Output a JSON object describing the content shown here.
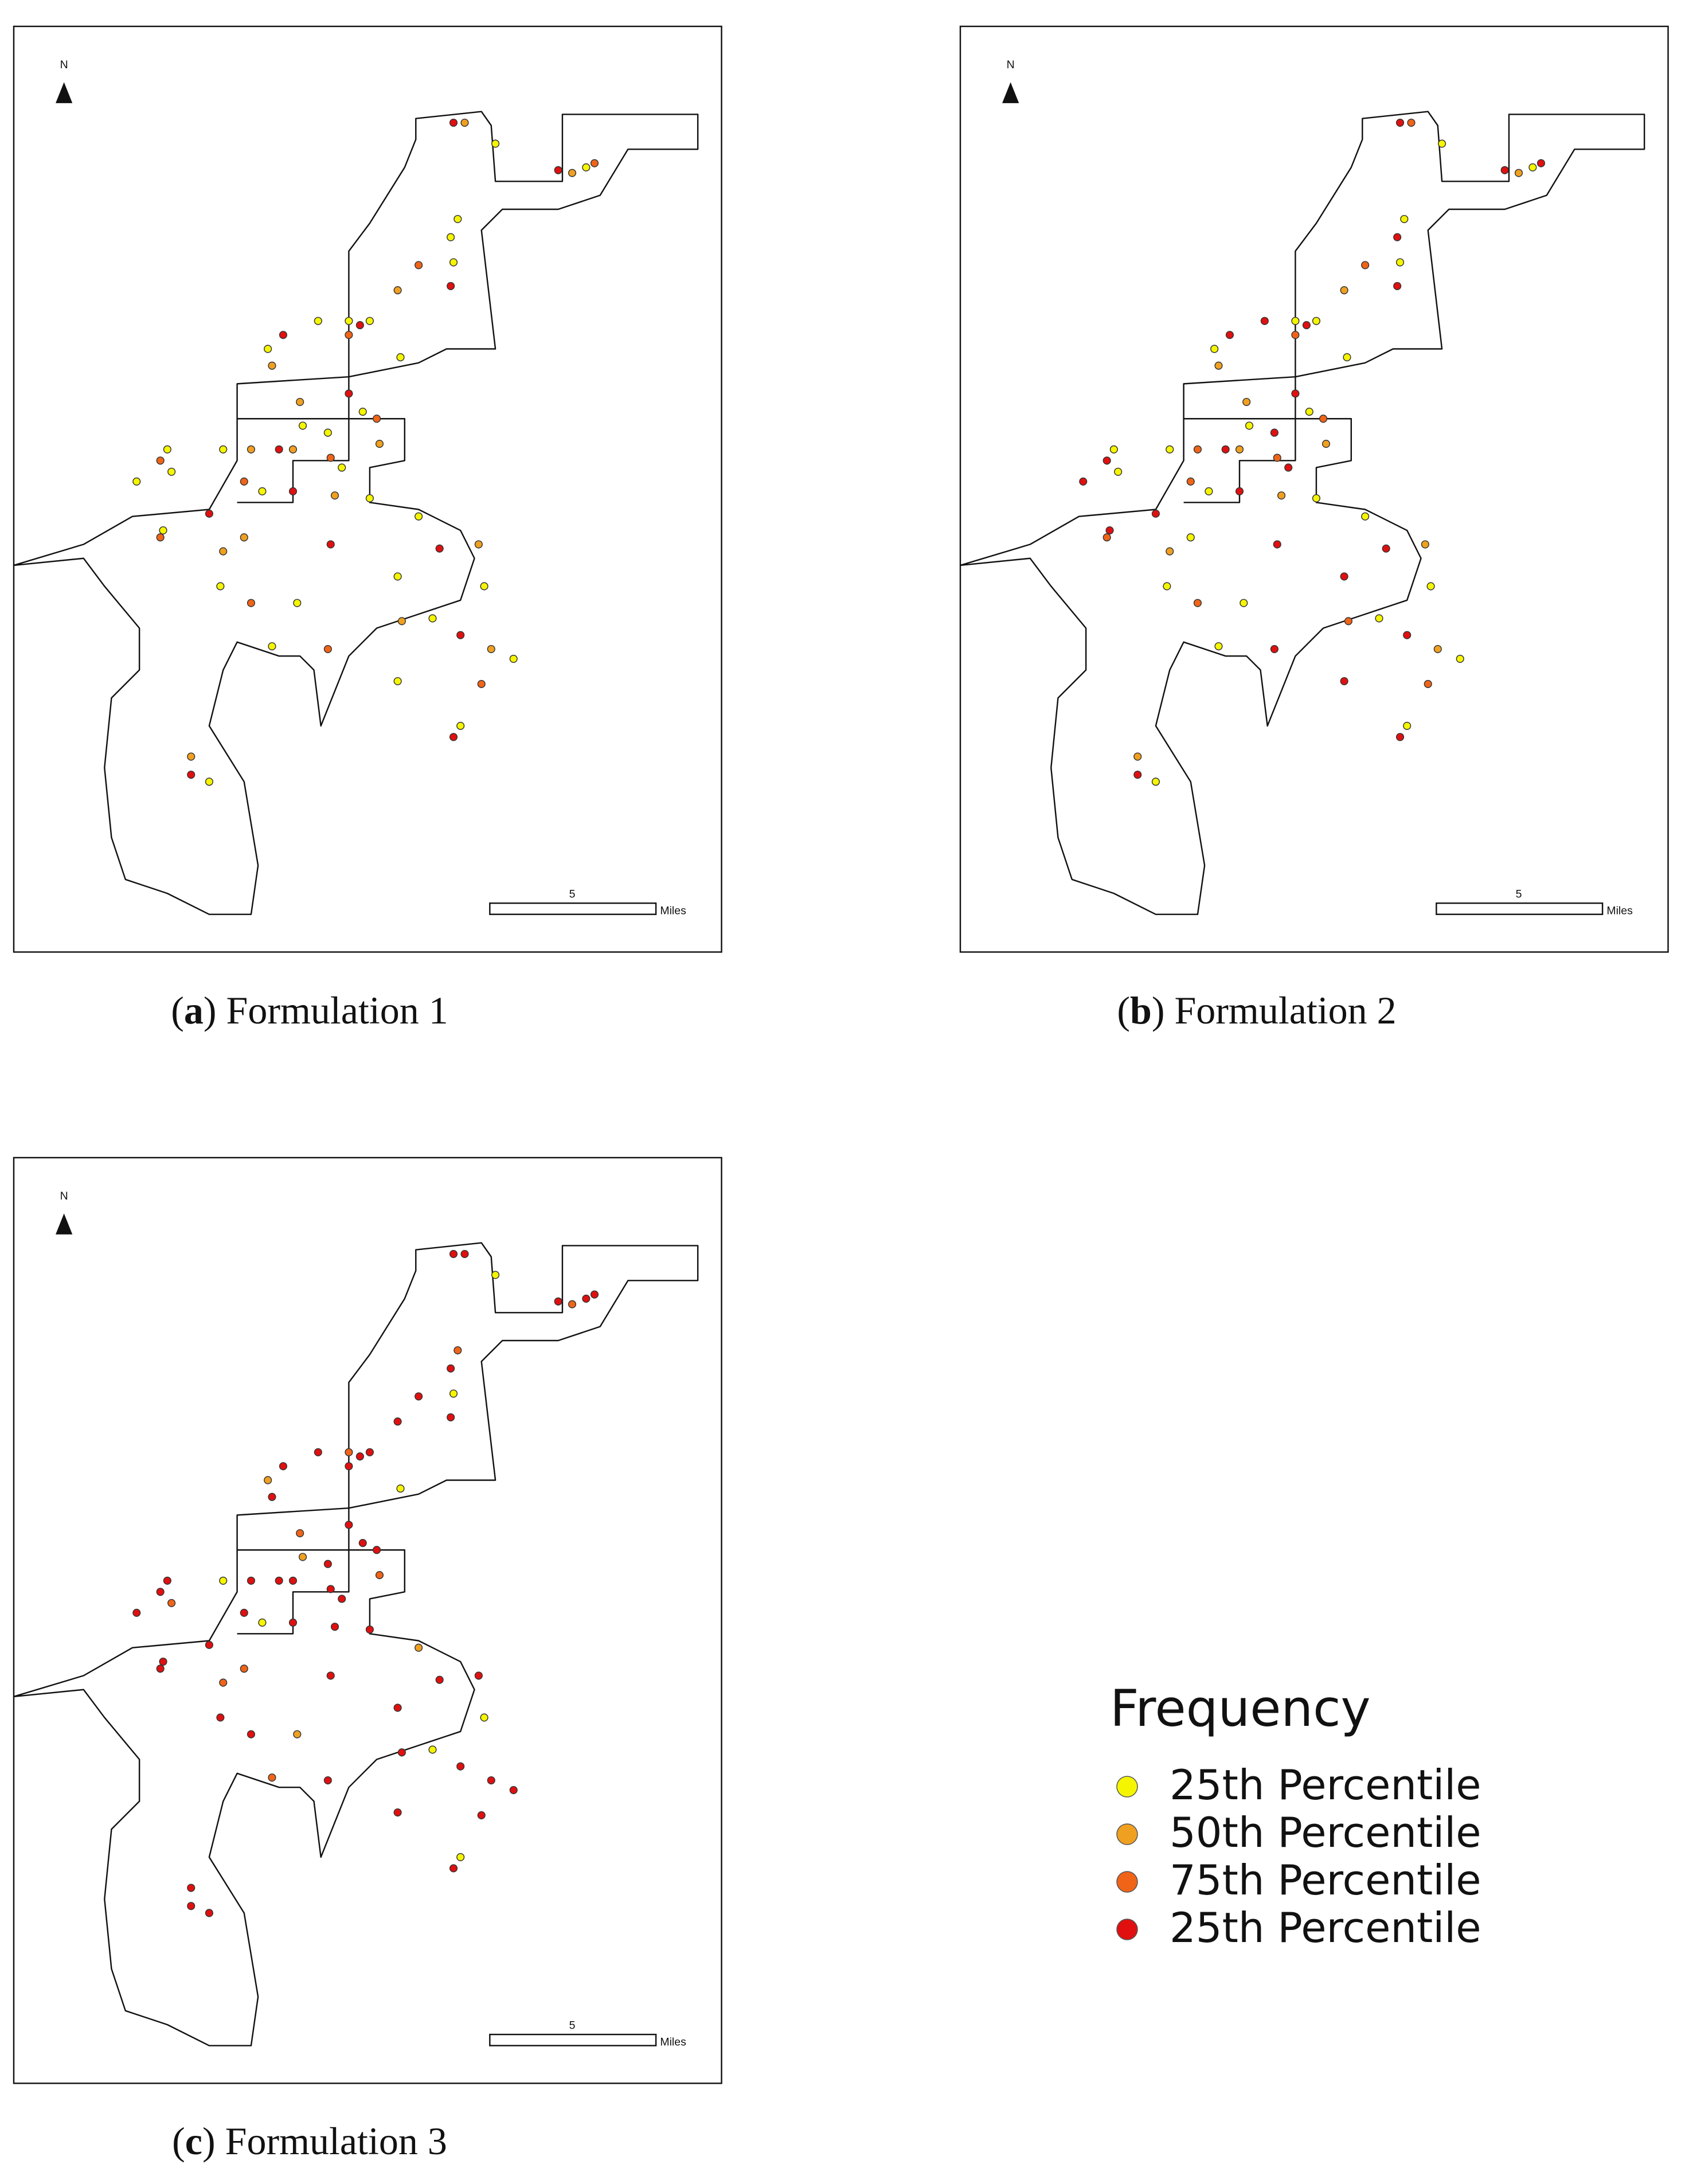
{
  "panels": [
    {
      "north": "N",
      "scale_label": "5",
      "scale_unit": "Miles",
      "caption": {
        "open": "(",
        "label": "a",
        "text": ") Formulation 1"
      }
    },
    {
      "north": "N",
      "scale_label": "5",
      "scale_unit": "Miles",
      "caption": {
        "open": "(",
        "label": "b",
        "text": ") Formulation 2"
      }
    },
    {
      "north": "N",
      "scale_label": "5",
      "scale_unit": "Miles",
      "caption": {
        "open": "(",
        "label": "c",
        "text": ") Formulation 3"
      }
    }
  ],
  "legend": {
    "title": "Frequency",
    "items": [
      {
        "label": "25th Percentile",
        "color": "#f5f500"
      },
      {
        "label": "50th Percentile",
        "color": "#f0a020"
      },
      {
        "label": "75th Percentile",
        "color": "#f06418"
      },
      {
        "label": "25th Percentile",
        "color": "#e01010"
      }
    ]
  }
}
